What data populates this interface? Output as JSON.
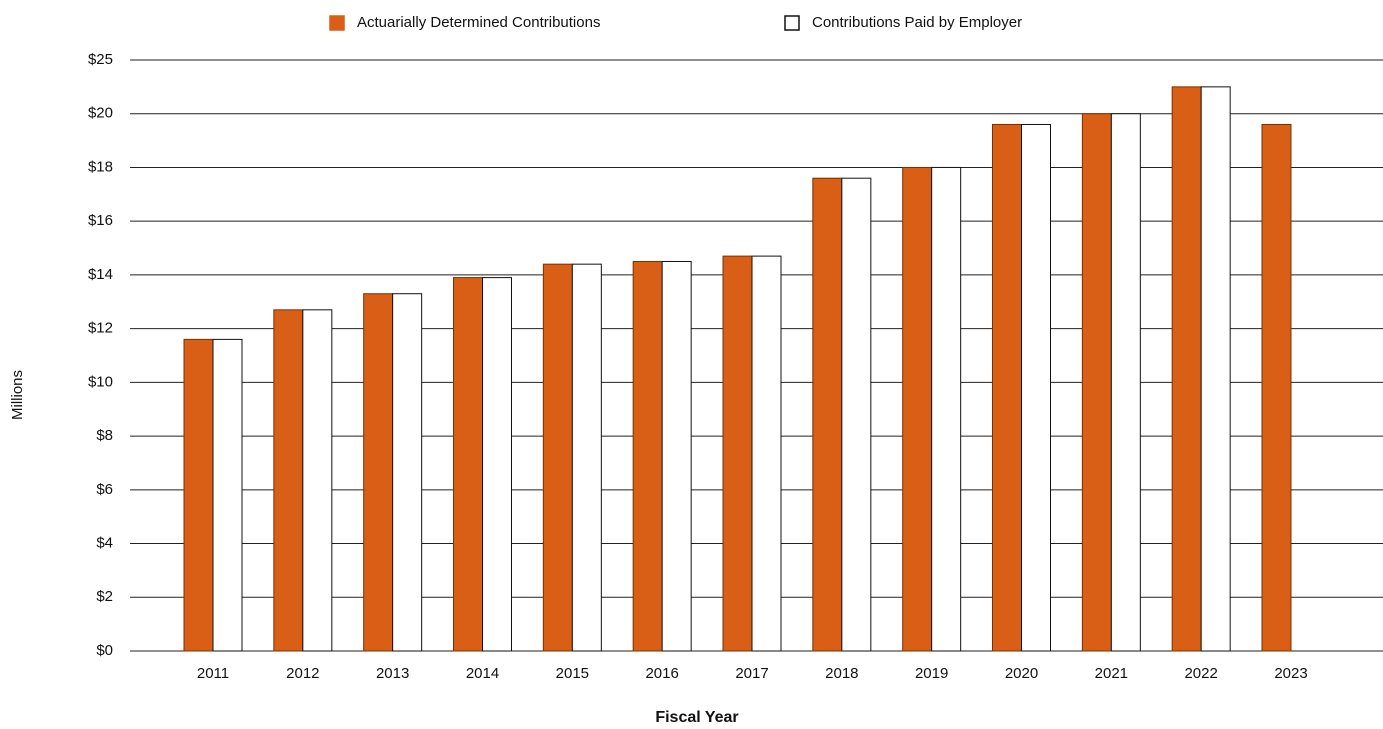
{
  "chart_data": {
    "type": "bar",
    "x_label": "Fiscal Year",
    "y_label": "Millions",
    "categories": [
      "2011",
      "2012",
      "2013",
      "2014",
      "2015",
      "2016",
      "2017",
      "2018",
      "2019",
      "2020",
      "2021",
      "2022",
      "2023"
    ],
    "series": [
      {
        "name": "Actuarially Determined Contributions",
        "color": "#d95f17",
        "values": [
          11.6,
          12.7,
          13.3,
          13.9,
          14.4,
          14.5,
          14.7,
          17.6,
          18,
          19.6,
          20,
          22.5,
          19.6
        ]
      },
      {
        "name": "Contributions Paid by Employer",
        "color": "#ffffff",
        "values": [
          11.6,
          12.7,
          13.3,
          13.9,
          14.4,
          14.5,
          14.7,
          17.6,
          18,
          19.6,
          20,
          22.5,
          null
        ]
      }
    ],
    "ylim": [
      0,
      25
    ],
    "yticks": [
      {
        "value": 0,
        "label": "$0"
      },
      {
        "value": 2,
        "label": "$2"
      },
      {
        "value": 4,
        "label": "$4"
      },
      {
        "value": 6,
        "label": "$6"
      },
      {
        "value": 8,
        "label": "$8"
      },
      {
        "value": 10,
        "label": "$10"
      },
      {
        "value": 12,
        "label": "$12"
      },
      {
        "value": 14,
        "label": "$14"
      },
      {
        "value": 16,
        "label": "$16"
      },
      {
        "value": 18,
        "label": "$18"
      },
      {
        "value": 20,
        "label": "$20"
      },
      {
        "value": 25,
        "label": "$25"
      }
    ],
    "grid": true,
    "legend": "top"
  }
}
